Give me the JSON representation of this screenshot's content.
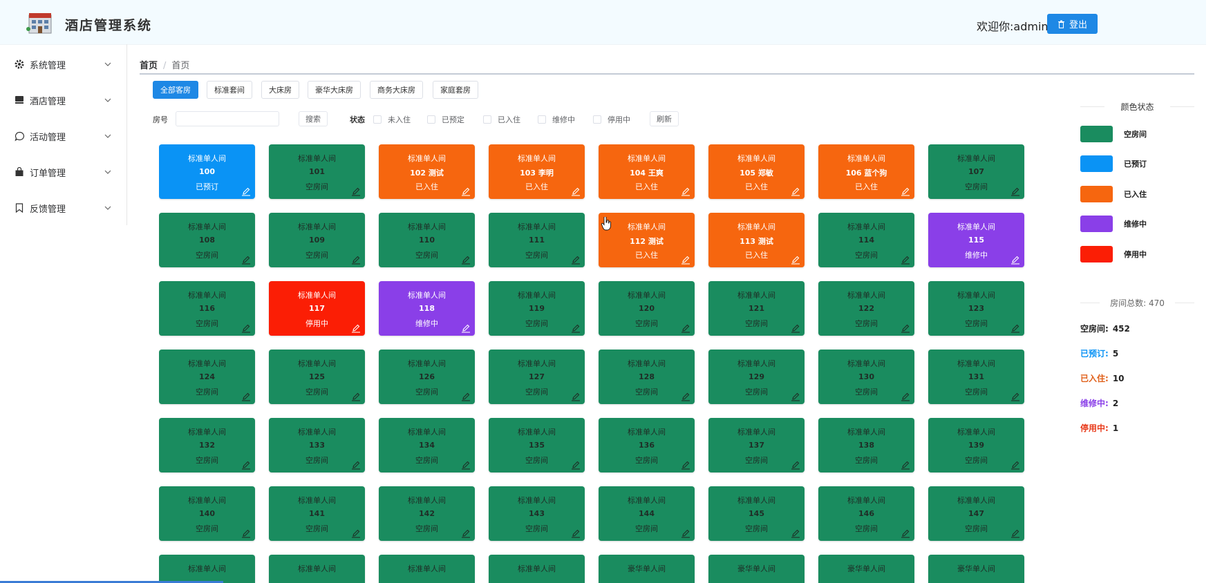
{
  "header": {
    "title": "酒店管理系统",
    "welcome": "欢迎你:admin",
    "logout_label": "登出"
  },
  "sidebar": {
    "items": [
      {
        "label": "系统管理",
        "icon": "gear-icon"
      },
      {
        "label": "酒店管理",
        "icon": "bed-icon"
      },
      {
        "label": "活动管理",
        "icon": "chat-icon"
      },
      {
        "label": "订单管理",
        "icon": "bag-icon"
      },
      {
        "label": "反馈管理",
        "icon": "bookmark-icon"
      }
    ]
  },
  "breadcrumb": {
    "first": "首页",
    "sep": "/",
    "current": "首页"
  },
  "room_types": [
    "全部客房",
    "标准套间",
    "大床房",
    "豪华大床房",
    "商务大床房",
    "家庭套房"
  ],
  "active_type_index": 0,
  "filters": {
    "room_no_label": "房号",
    "search_label": "搜索",
    "status_label": "状态",
    "statuses": [
      "未入住",
      "已预定",
      "已入住",
      "维修中",
      "停用中"
    ],
    "refresh_label": "刷新"
  },
  "colors": {
    "empty": "#1a8c5f",
    "booked": "#0a93f5",
    "in": "#f6660f",
    "repair": "#8a3fe8",
    "stop": "#fb1e05",
    "accent": "#1e88e5"
  },
  "rooms": [
    {
      "type": "标准单人间",
      "num": "100",
      "status": "已预订",
      "state": "booked"
    },
    {
      "type": "标准单人间",
      "num": "101",
      "status": "空房间",
      "state": "empty"
    },
    {
      "type": "标准单人间",
      "num": "102 测试",
      "status": "已入住",
      "state": "in"
    },
    {
      "type": "标准单人间",
      "num": "103 李明",
      "status": "已入住",
      "state": "in"
    },
    {
      "type": "标准单人间",
      "num": "104 王爽",
      "status": "已入住",
      "state": "in"
    },
    {
      "type": "标准单人间",
      "num": "105 郑敏",
      "status": "已入住",
      "state": "in"
    },
    {
      "type": "标准单人间",
      "num": "106 蓝个狗",
      "status": "已入住",
      "state": "in"
    },
    {
      "type": "标准单人间",
      "num": "107",
      "status": "空房间",
      "state": "empty"
    },
    {
      "type": "标准单人间",
      "num": "108",
      "status": "空房间",
      "state": "empty"
    },
    {
      "type": "标准单人间",
      "num": "109",
      "status": "空房间",
      "state": "empty"
    },
    {
      "type": "标准单人间",
      "num": "110",
      "status": "空房间",
      "state": "empty"
    },
    {
      "type": "标准单人间",
      "num": "111",
      "status": "空房间",
      "state": "empty"
    },
    {
      "type": "标准单人间",
      "num": "112 测试",
      "status": "已入住",
      "state": "in"
    },
    {
      "type": "标准单人间",
      "num": "113 测试",
      "status": "已入住",
      "state": "in"
    },
    {
      "type": "标准单人间",
      "num": "114",
      "status": "空房间",
      "state": "empty"
    },
    {
      "type": "标准单人间",
      "num": "115",
      "status": "维修中",
      "state": "repair"
    },
    {
      "type": "标准单人间",
      "num": "116",
      "status": "空房间",
      "state": "empty"
    },
    {
      "type": "标准单人间",
      "num": "117",
      "status": "停用中",
      "state": "stop"
    },
    {
      "type": "标准单人间",
      "num": "118",
      "status": "维修中",
      "state": "repair"
    },
    {
      "type": "标准单人间",
      "num": "119",
      "status": "空房间",
      "state": "empty"
    },
    {
      "type": "标准单人间",
      "num": "120",
      "status": "空房间",
      "state": "empty"
    },
    {
      "type": "标准单人间",
      "num": "121",
      "status": "空房间",
      "state": "empty"
    },
    {
      "type": "标准单人间",
      "num": "122",
      "status": "空房间",
      "state": "empty"
    },
    {
      "type": "标准单人间",
      "num": "123",
      "status": "空房间",
      "state": "empty"
    },
    {
      "type": "标准单人间",
      "num": "124",
      "status": "空房间",
      "state": "empty"
    },
    {
      "type": "标准单人间",
      "num": "125",
      "status": "空房间",
      "state": "empty"
    },
    {
      "type": "标准单人间",
      "num": "126",
      "status": "空房间",
      "state": "empty"
    },
    {
      "type": "标准单人间",
      "num": "127",
      "status": "空房间",
      "state": "empty"
    },
    {
      "type": "标准单人间",
      "num": "128",
      "status": "空房间",
      "state": "empty"
    },
    {
      "type": "标准单人间",
      "num": "129",
      "status": "空房间",
      "state": "empty"
    },
    {
      "type": "标准单人间",
      "num": "130",
      "status": "空房间",
      "state": "empty"
    },
    {
      "type": "标准单人间",
      "num": "131",
      "status": "空房间",
      "state": "empty"
    },
    {
      "type": "标准单人间",
      "num": "132",
      "status": "空房间",
      "state": "empty"
    },
    {
      "type": "标准单人间",
      "num": "133",
      "status": "空房间",
      "state": "empty"
    },
    {
      "type": "标准单人间",
      "num": "134",
      "status": "空房间",
      "state": "empty"
    },
    {
      "type": "标准单人间",
      "num": "135",
      "status": "空房间",
      "state": "empty"
    },
    {
      "type": "标准单人间",
      "num": "136",
      "status": "空房间",
      "state": "empty"
    },
    {
      "type": "标准单人间",
      "num": "137",
      "status": "空房间",
      "state": "empty"
    },
    {
      "type": "标准单人间",
      "num": "138",
      "status": "空房间",
      "state": "empty"
    },
    {
      "type": "标准单人间",
      "num": "139",
      "status": "空房间",
      "state": "empty"
    },
    {
      "type": "标准单人间",
      "num": "140",
      "status": "空房间",
      "state": "empty"
    },
    {
      "type": "标准单人间",
      "num": "141",
      "status": "空房间",
      "state": "empty"
    },
    {
      "type": "标准单人间",
      "num": "142",
      "status": "空房间",
      "state": "empty"
    },
    {
      "type": "标准单人间",
      "num": "143",
      "status": "空房间",
      "state": "empty"
    },
    {
      "type": "标准单人间",
      "num": "144",
      "status": "空房间",
      "state": "empty"
    },
    {
      "type": "标准单人间",
      "num": "145",
      "status": "空房间",
      "state": "empty"
    },
    {
      "type": "标准单人间",
      "num": "146",
      "status": "空房间",
      "state": "empty"
    },
    {
      "type": "标准单人间",
      "num": "147",
      "status": "空房间",
      "state": "empty"
    },
    {
      "type": "标准单人间",
      "num": "",
      "status": "",
      "state": "empty"
    },
    {
      "type": "标准单人间",
      "num": "",
      "status": "",
      "state": "empty"
    },
    {
      "type": "标准单人间",
      "num": "",
      "status": "",
      "state": "empty"
    },
    {
      "type": "标准单人间",
      "num": "",
      "status": "",
      "state": "empty"
    },
    {
      "type": "豪华单人间",
      "num": "",
      "status": "",
      "state": "empty"
    },
    {
      "type": "豪华单人间",
      "num": "",
      "status": "",
      "state": "empty"
    },
    {
      "type": "豪华单人间",
      "num": "",
      "status": "",
      "state": "empty"
    },
    {
      "type": "豪华单人间",
      "num": "",
      "status": "",
      "state": "empty"
    }
  ],
  "legend": {
    "title": "颜色状态",
    "items": [
      {
        "label": "空房间",
        "color": "#1a8c5f"
      },
      {
        "label": "已预订",
        "color": "#0a93f5"
      },
      {
        "label": "已入住",
        "color": "#f6660f"
      },
      {
        "label": "维修中",
        "color": "#8a3fe8"
      },
      {
        "label": "停用中",
        "color": "#fb1e05"
      }
    ]
  },
  "totals": {
    "total_label": "房间总数: 470",
    "counts": [
      {
        "label": "空房间:",
        "value": "452",
        "color": "#222222"
      },
      {
        "label": "已预订:",
        "value": "5",
        "color": "#0a93f5"
      },
      {
        "label": "已入住:",
        "value": "10",
        "color": "#e0601a"
      },
      {
        "label": "维修中:",
        "value": "2",
        "color": "#8a3fe8"
      },
      {
        "label": "停用中:",
        "value": "1",
        "color": "#e83a1a"
      }
    ]
  }
}
